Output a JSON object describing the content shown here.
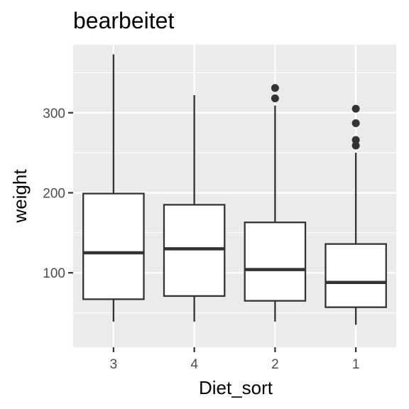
{
  "chart_data": {
    "type": "boxplot",
    "title": "bearbeitet",
    "xlabel": "Diet_sort",
    "ylabel": "weight",
    "ylim": [
      7,
      385
    ],
    "yticks": [
      100,
      200,
      300
    ],
    "categories": [
      "3",
      "4",
      "2",
      "1"
    ],
    "boxes": [
      {
        "category": "3",
        "lower_whisker": 39,
        "q1": 67,
        "median": 125,
        "q3": 199,
        "upper_whisker": 373,
        "outliers": []
      },
      {
        "category": "4",
        "lower_whisker": 39,
        "q1": 71,
        "median": 130,
        "q3": 185,
        "upper_whisker": 322,
        "outliers": []
      },
      {
        "category": "2",
        "lower_whisker": 39,
        "q1": 65,
        "median": 104,
        "q3": 163,
        "upper_whisker": 309,
        "outliers": [
          318,
          331
        ]
      },
      {
        "category": "1",
        "lower_whisker": 35,
        "q1": 57,
        "median": 88,
        "q3": 136,
        "upper_whisker": 250,
        "outliers": [
          259,
          266,
          287,
          305
        ]
      }
    ],
    "grid": true,
    "colors": {
      "panel": "#ebebeb",
      "grid": "#ffffff",
      "box_fill": "#ffffff",
      "box_line": "#333333"
    }
  }
}
